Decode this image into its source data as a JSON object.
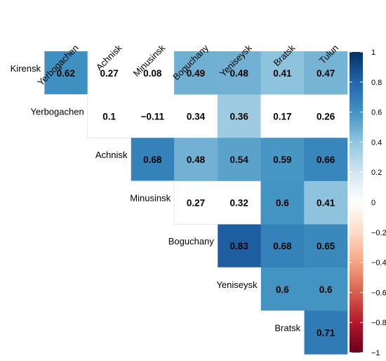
{
  "chart_data": {
    "type": "heatmap",
    "title": "",
    "columns": [
      "Yerbogachen",
      "Achnisk",
      "Minusinsk",
      "Boguchany",
      "Yeniseysk",
      "Bratsk",
      "Tulun"
    ],
    "rows": [
      "Kirensk",
      "Yerbogachen",
      "Achnisk",
      "Minusinsk",
      "Boguchany",
      "Yeniseysk",
      "Bratsk"
    ],
    "values": [
      [
        0.62,
        0.27,
        0.08,
        0.49,
        0.48,
        0.41,
        0.47
      ],
      [
        null,
        0.1,
        -0.11,
        0.34,
        0.36,
        0.17,
        0.26
      ],
      [
        null,
        null,
        0.68,
        0.48,
        0.54,
        0.59,
        0.66
      ],
      [
        null,
        null,
        null,
        0.27,
        0.32,
        0.6,
        0.41
      ],
      [
        null,
        null,
        null,
        null,
        0.83,
        0.68,
        0.65
      ],
      [
        null,
        null,
        null,
        null,
        null,
        0.6,
        0.6
      ],
      [
        null,
        null,
        null,
        null,
        null,
        null,
        0.71
      ]
    ],
    "labels": [
      [
        "0.62",
        "0.27",
        "0.08",
        "0.49",
        "0.48",
        "0.41",
        "0.47"
      ],
      [
        null,
        "0.1",
        "−0.11",
        "0.34",
        "0.36",
        "0.17",
        "0.26"
      ],
      [
        null,
        null,
        "0.68",
        "0.48",
        "0.54",
        "0.59",
        "0.66"
      ],
      [
        null,
        null,
        null,
        "0.27",
        "0.32",
        "0.6",
        "0.41"
      ],
      [
        null,
        null,
        null,
        null,
        "0.83",
        "0.68",
        "0.65"
      ],
      [
        null,
        null,
        null,
        null,
        null,
        "0.6",
        "0.6"
      ],
      [
        null,
        null,
        null,
        null,
        null,
        null,
        "0.71"
      ]
    ],
    "insignificant": [
      [
        false,
        true,
        true,
        false,
        false,
        false,
        false
      ],
      [
        null,
        true,
        true,
        true,
        false,
        true,
        true
      ],
      [
        null,
        null,
        false,
        false,
        false,
        false,
        false
      ],
      [
        null,
        null,
        null,
        true,
        true,
        false,
        false
      ],
      [
        null,
        null,
        null,
        null,
        false,
        false,
        false
      ],
      [
        null,
        null,
        null,
        null,
        null,
        false,
        false
      ],
      [
        null,
        null,
        null,
        null,
        null,
        null,
        false
      ]
    ],
    "colorbar": {
      "range": [
        -1,
        1
      ],
      "ticks": [
        -1,
        -0.8,
        -0.6,
        -0.4,
        -0.2,
        0,
        0.2,
        0.4,
        0.6,
        0.8,
        1
      ],
      "tick_labels": [
        "−1",
        "−0.8",
        "−0.6",
        "−0.4",
        "−0.2",
        "0",
        "0.2",
        "0.4",
        "0.6",
        "0.8",
        "1"
      ],
      "low_color": "#67001f",
      "mid_color": "#ffffff",
      "high_color": "#053061",
      "orientation": "vertical",
      "placement": "right"
    },
    "layout": "upper-triangle"
  }
}
